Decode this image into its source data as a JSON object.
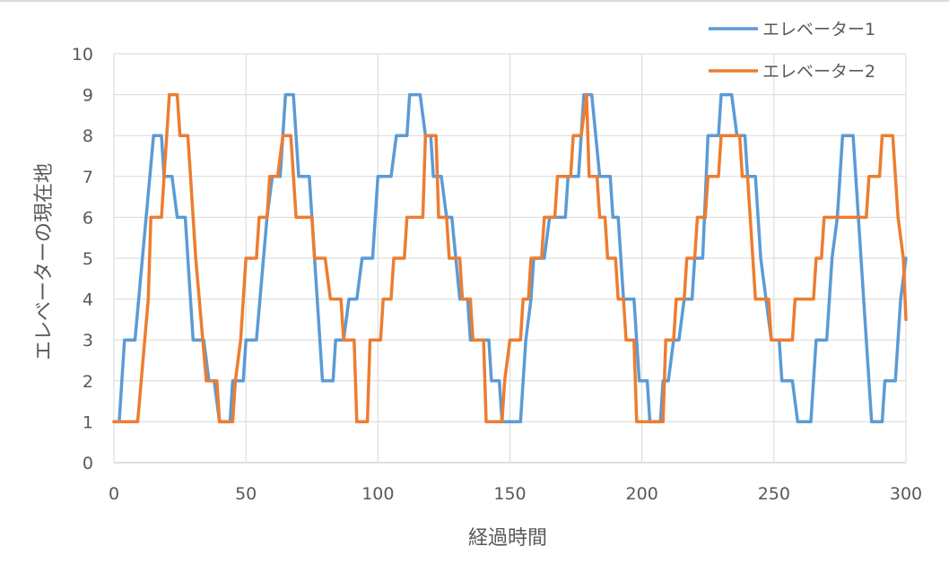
{
  "chart_data": {
    "type": "line",
    "xlabel": "経過時間",
    "ylabel": "エレベーターの現在地",
    "xlim": [
      0,
      300
    ],
    "ylim": [
      0,
      10
    ],
    "xticks": [
      "0",
      "50",
      "100",
      "150",
      "200",
      "250",
      "300"
    ],
    "yticks": [
      "0",
      "1",
      "2",
      "3",
      "4",
      "5",
      "6",
      "7",
      "8",
      "9",
      "10"
    ],
    "grid": true,
    "legend_position": "top-right",
    "series": [
      {
        "name": "エレベーター1",
        "color": "#5b9bd5",
        "points": [
          [
            0,
            1
          ],
          [
            2,
            1
          ],
          [
            4,
            3
          ],
          [
            8,
            3
          ],
          [
            15,
            8
          ],
          [
            18,
            8
          ],
          [
            19,
            7
          ],
          [
            22,
            7
          ],
          [
            24,
            6
          ],
          [
            27,
            6
          ],
          [
            30,
            3
          ],
          [
            34,
            3
          ],
          [
            36,
            2
          ],
          [
            38,
            2
          ],
          [
            40,
            1
          ],
          [
            44,
            1
          ],
          [
            45,
            2
          ],
          [
            49,
            2
          ],
          [
            50,
            3
          ],
          [
            54,
            3
          ],
          [
            58,
            6
          ],
          [
            60,
            7
          ],
          [
            63,
            7
          ],
          [
            65,
            9
          ],
          [
            68,
            9
          ],
          [
            70,
            7
          ],
          [
            74,
            7
          ],
          [
            78,
            3
          ],
          [
            79,
            2
          ],
          [
            83,
            2
          ],
          [
            84,
            3
          ],
          [
            87,
            3
          ],
          [
            89,
            4
          ],
          [
            92,
            4
          ],
          [
            94,
            5
          ],
          [
            98,
            5
          ],
          [
            100,
            7
          ],
          [
            105,
            7
          ],
          [
            107,
            8
          ],
          [
            111,
            8
          ],
          [
            112,
            9
          ],
          [
            116,
            9
          ],
          [
            118,
            8
          ],
          [
            120,
            8
          ],
          [
            121,
            7
          ],
          [
            124,
            7
          ],
          [
            126,
            6
          ],
          [
            128,
            6
          ],
          [
            131,
            4
          ],
          [
            134,
            4
          ],
          [
            135,
            3
          ],
          [
            142,
            3
          ],
          [
            143,
            2
          ],
          [
            146,
            2
          ],
          [
            147,
            1
          ],
          [
            154,
            1
          ],
          [
            156,
            3
          ],
          [
            158,
            4
          ],
          [
            159,
            5
          ],
          [
            163,
            5
          ],
          [
            165,
            6
          ],
          [
            171,
            6
          ],
          [
            172,
            7
          ],
          [
            176,
            7
          ],
          [
            178,
            9
          ],
          [
            181,
            9
          ],
          [
            184,
            7
          ],
          [
            188,
            7
          ],
          [
            189,
            6
          ],
          [
            191,
            6
          ],
          [
            193,
            4
          ],
          [
            197,
            4
          ],
          [
            199,
            2
          ],
          [
            202,
            2
          ],
          [
            203,
            1
          ],
          [
            207,
            1
          ],
          [
            208,
            2
          ],
          [
            210,
            2
          ],
          [
            212,
            3
          ],
          [
            214,
            3
          ],
          [
            216,
            4
          ],
          [
            219,
            4
          ],
          [
            220,
            5
          ],
          [
            223,
            5
          ],
          [
            225,
            8
          ],
          [
            229,
            8
          ],
          [
            230,
            9
          ],
          [
            234,
            9
          ],
          [
            236,
            8
          ],
          [
            239,
            8
          ],
          [
            240,
            7
          ],
          [
            243,
            7
          ],
          [
            245,
            5
          ],
          [
            247,
            4
          ],
          [
            249,
            3
          ],
          [
            252,
            3
          ],
          [
            253,
            2
          ],
          [
            257,
            2
          ],
          [
            259,
            1
          ],
          [
            264,
            1
          ],
          [
            266,
            3
          ],
          [
            270,
            3
          ],
          [
            272,
            5
          ],
          [
            274,
            6
          ],
          [
            276,
            8
          ],
          [
            280,
            8
          ],
          [
            285,
            3
          ],
          [
            287,
            1
          ],
          [
            291,
            1
          ],
          [
            292,
            2
          ],
          [
            296,
            2
          ],
          [
            298,
            4
          ],
          [
            300,
            5
          ]
        ]
      },
      {
        "name": "エレベーター2",
        "color": "#ed7d31",
        "points": [
          [
            0,
            1
          ],
          [
            9,
            1
          ],
          [
            13,
            4
          ],
          [
            14,
            6
          ],
          [
            18,
            6
          ],
          [
            21,
            9
          ],
          [
            24,
            9
          ],
          [
            25,
            8
          ],
          [
            28,
            8
          ],
          [
            29,
            7
          ],
          [
            31,
            5
          ],
          [
            35,
            2
          ],
          [
            39,
            2
          ],
          [
            40,
            1
          ],
          [
            45,
            1
          ],
          [
            46,
            2
          ],
          [
            48,
            3
          ],
          [
            50,
            5
          ],
          [
            54,
            5
          ],
          [
            55,
            6
          ],
          [
            58,
            6
          ],
          [
            59,
            7
          ],
          [
            62,
            7
          ],
          [
            64,
            8
          ],
          [
            67,
            8
          ],
          [
            69,
            6
          ],
          [
            75,
            6
          ],
          [
            76,
            5
          ],
          [
            80,
            5
          ],
          [
            82,
            4
          ],
          [
            86,
            4
          ],
          [
            87,
            3
          ],
          [
            91,
            3
          ],
          [
            92,
            1
          ],
          [
            96,
            1
          ],
          [
            97,
            3
          ],
          [
            101,
            3
          ],
          [
            102,
            4
          ],
          [
            105,
            4
          ],
          [
            106,
            5
          ],
          [
            110,
            5
          ],
          [
            111,
            6
          ],
          [
            117,
            6
          ],
          [
            118,
            8
          ],
          [
            122,
            8
          ],
          [
            123,
            6
          ],
          [
            126,
            6
          ],
          [
            127,
            5
          ],
          [
            131,
            5
          ],
          [
            132,
            4
          ],
          [
            135,
            4
          ],
          [
            136,
            3
          ],
          [
            140,
            3
          ],
          [
            141,
            1
          ],
          [
            147,
            1
          ],
          [
            148,
            2
          ],
          [
            150,
            3
          ],
          [
            154,
            3
          ],
          [
            155,
            4
          ],
          [
            157,
            4
          ],
          [
            158,
            5
          ],
          [
            162,
            5
          ],
          [
            163,
            6
          ],
          [
            167,
            6
          ],
          [
            168,
            7
          ],
          [
            173,
            7
          ],
          [
            174,
            8
          ],
          [
            177,
            8
          ],
          [
            179,
            9
          ],
          [
            180,
            7
          ],
          [
            183,
            7
          ],
          [
            184,
            6
          ],
          [
            186,
            6
          ],
          [
            187,
            5
          ],
          [
            190,
            5
          ],
          [
            191,
            4
          ],
          [
            193,
            4
          ],
          [
            194,
            3
          ],
          [
            197,
            3
          ],
          [
            198,
            1
          ],
          [
            208,
            1
          ],
          [
            209,
            3
          ],
          [
            212,
            3
          ],
          [
            213,
            4
          ],
          [
            216,
            4
          ],
          [
            217,
            5
          ],
          [
            220,
            5
          ],
          [
            221,
            6
          ],
          [
            224,
            6
          ],
          [
            225,
            7
          ],
          [
            229,
            7
          ],
          [
            230,
            8
          ],
          [
            237,
            8
          ],
          [
            238,
            7
          ],
          [
            240,
            7
          ],
          [
            242,
            5
          ],
          [
            243,
            4
          ],
          [
            248,
            4
          ],
          [
            249,
            3
          ],
          [
            257,
            3
          ],
          [
            258,
            4
          ],
          [
            265,
            4
          ],
          [
            266,
            5
          ],
          [
            268,
            5
          ],
          [
            269,
            6
          ],
          [
            285,
            6
          ],
          [
            286,
            7
          ],
          [
            290,
            7
          ],
          [
            291,
            8
          ],
          [
            295,
            8
          ],
          [
            297,
            6
          ],
          [
            299,
            5
          ],
          [
            300,
            3.5
          ]
        ]
      }
    ]
  }
}
